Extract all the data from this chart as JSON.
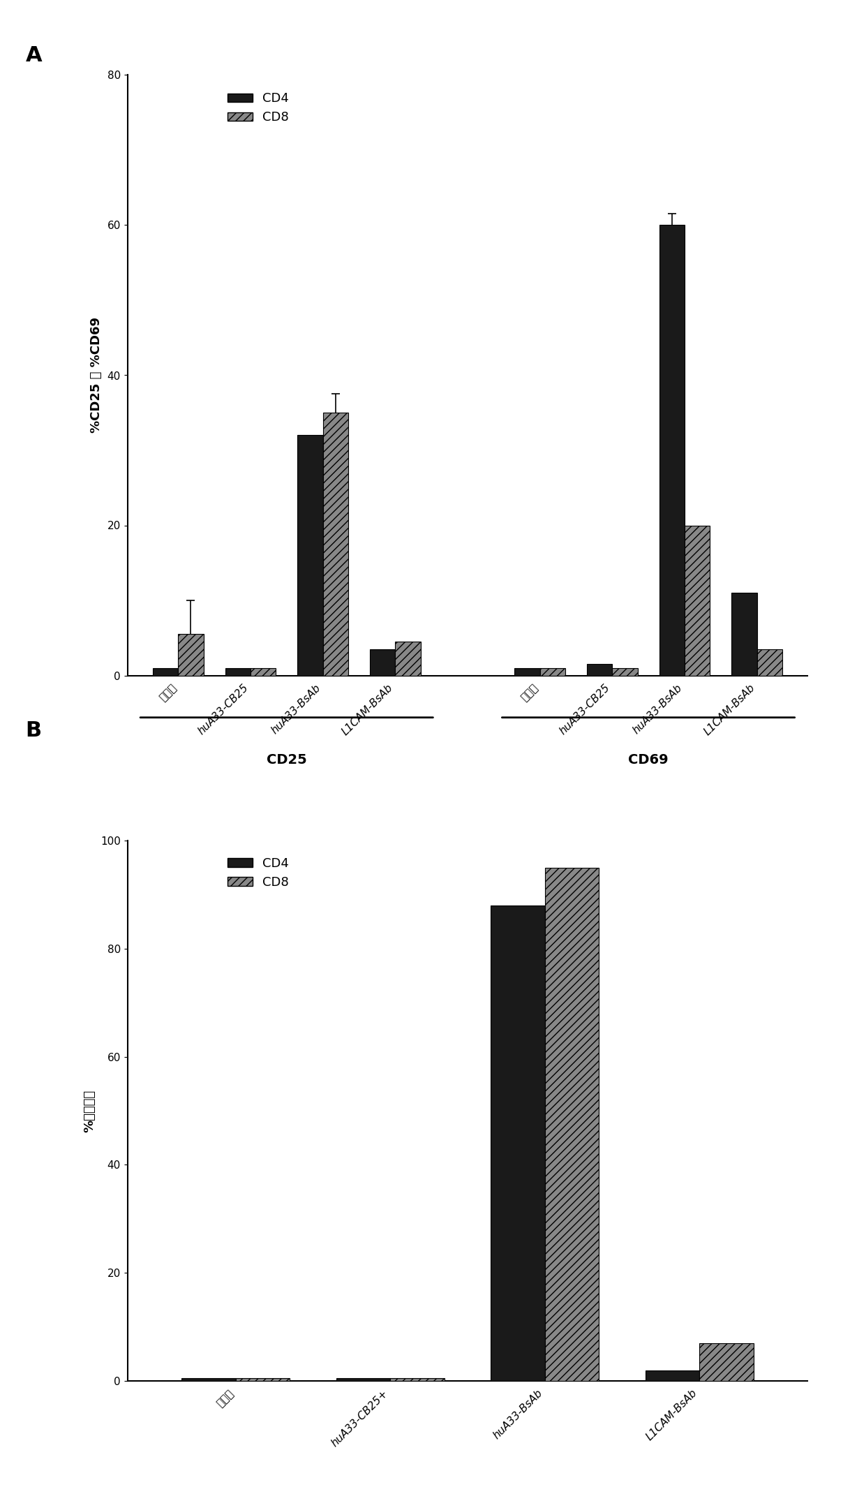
{
  "panel_A": {
    "ylabel": "%CD25 或 %CD69",
    "ylim": [
      0,
      80
    ],
    "yticks": [
      0,
      20,
      40,
      60,
      80
    ],
    "groups_CD25": [
      "无抗体",
      "huA33-CB25",
      "huA33-BsAb",
      "L1CAM-BsAb"
    ],
    "groups_CD69": [
      "无抗体",
      "huA33-CB25",
      "huA33-BsAb",
      "L1CAM-BsAb"
    ],
    "cd4_CD25": [
      1.0,
      1.0,
      32.0,
      3.5
    ],
    "cd8_CD25": [
      5.5,
      1.0,
      35.0,
      4.5
    ],
    "cd4_CD69": [
      1.0,
      1.5,
      60.0,
      11.0
    ],
    "cd8_CD69": [
      1.0,
      1.0,
      20.0,
      3.5
    ],
    "cd4_err_CD25": [
      0.0,
      0.0,
      0.0,
      0.0
    ],
    "cd8_err_CD25": [
      4.5,
      0.0,
      2.5,
      0.0
    ],
    "cd4_err_CD69": [
      0.0,
      0.0,
      1.5,
      0.0
    ],
    "cd8_err_CD69": [
      0.0,
      0.0,
      0.0,
      0.0
    ],
    "bracket_CD25_label": "CD25",
    "bracket_CD69_label": "CD69"
  },
  "panel_B": {
    "ylabel": "%分裂细胞",
    "ylim": [
      0,
      100
    ],
    "yticks": [
      0,
      20,
      40,
      60,
      80,
      100
    ],
    "groups": [
      "无抗体",
      "huA33-CB25+",
      "huA33-BsAb",
      "L1CAM-BsAb"
    ],
    "cd4_vals": [
      0.5,
      0.5,
      88.0,
      2.0
    ],
    "cd8_vals": [
      0.5,
      0.5,
      95.0,
      7.0
    ]
  },
  "cd4_color": "#1a1a1a",
  "cd8_color": "#888888",
  "cd8_hatch": "///",
  "bar_width": 0.35,
  "legend_fontsize": 13,
  "tick_fontsize": 11,
  "label_fontsize": 13,
  "panel_label_fontsize": 22
}
